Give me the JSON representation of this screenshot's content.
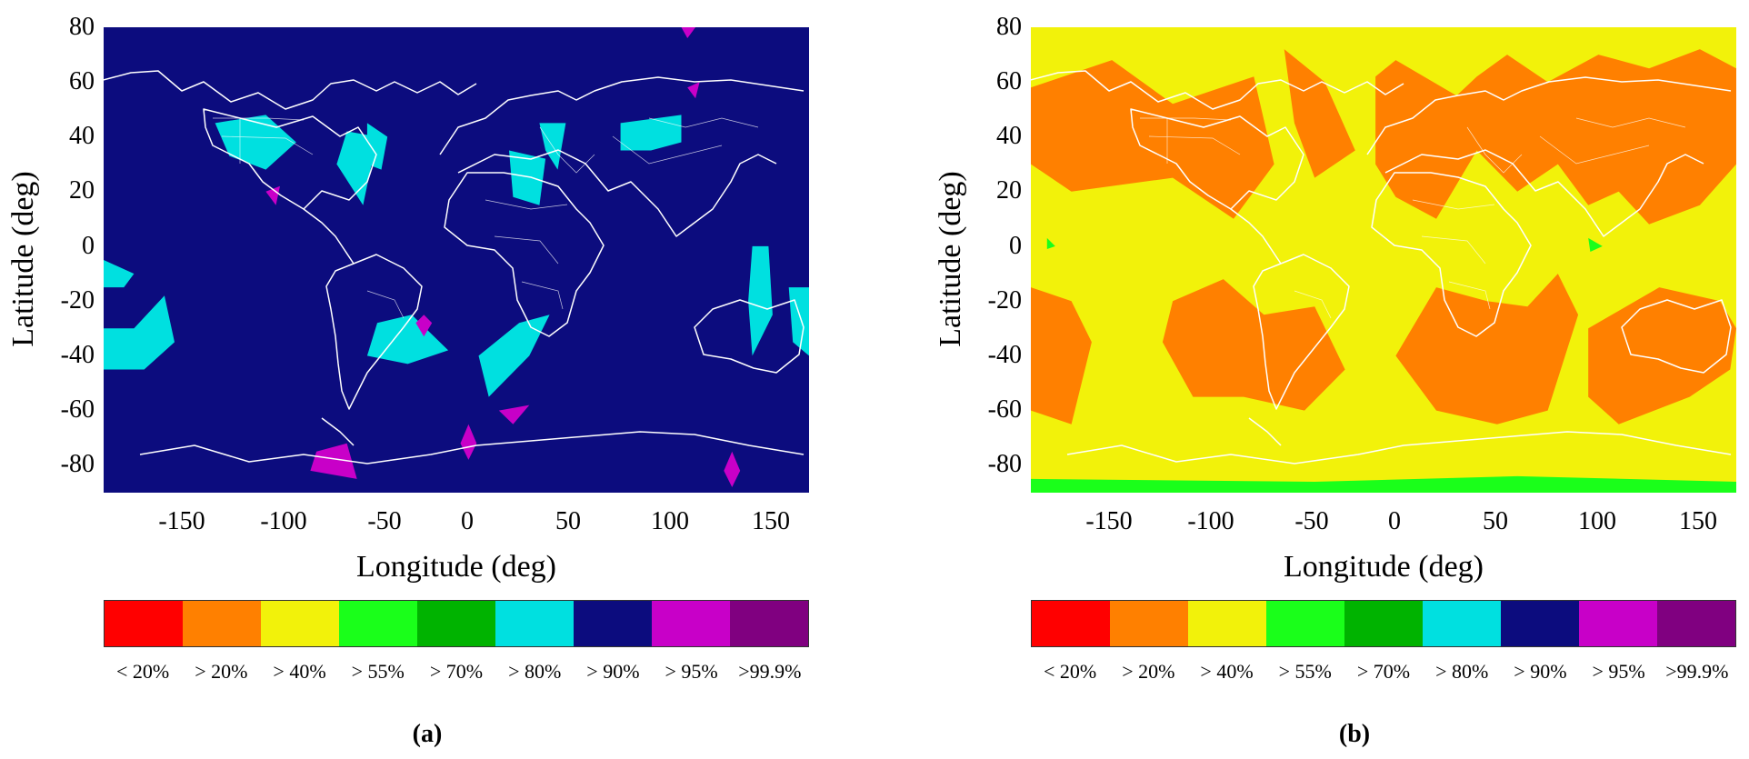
{
  "figure": {
    "panels": [
      {
        "caption": "(a)",
        "background": "#0c0c7e",
        "x_label": "Longitude (deg)",
        "y_label": "Latitude (deg)"
      },
      {
        "caption": "(b)",
        "background": "#f2f20a",
        "x_label": "Longitude (deg)",
        "y_label": "Latitude (deg)"
      }
    ],
    "x_ticks": [
      "-150",
      "-100",
      "-50",
      "0",
      "50",
      "100",
      "150"
    ],
    "y_ticks": [
      "80",
      "60",
      "40",
      "20",
      "0",
      "-20",
      "-40",
      "-60",
      "-80"
    ],
    "colorbar": {
      "colors": [
        "#ff0000",
        "#ff8000",
        "#f2f20a",
        "#1aff1a",
        "#00b300",
        "#00e0e0",
        "#0c0c7e",
        "#c800c8",
        "#800080"
      ],
      "labels": [
        "< 20%",
        "> 20%",
        "> 40%",
        "> 55%",
        "> 70%",
        "> 80%",
        "> 90%",
        "> 95%",
        ">99.9%"
      ]
    }
  },
  "chart_data": [
    {
      "type": "heatmap",
      "xlabel": "Longitude (deg)",
      "ylabel": "Latitude (deg)",
      "xlim": [
        -180,
        168
      ],
      "ylim": [
        -90,
        80
      ],
      "x_ticks": [
        -150,
        -100,
        -50,
        0,
        50,
        100,
        150
      ],
      "y_ticks": [
        80,
        60,
        40,
        20,
        0,
        -20,
        -40,
        -60,
        -80
      ],
      "dominant_class": "> 90%",
      "regions": [
        {
          "class": "> 80%",
          "polygon": [
            [
              -125,
              45
            ],
            [
              -100,
              48
            ],
            [
              -85,
              38
            ],
            [
              -100,
              28
            ],
            [
              -118,
              33
            ]
          ]
        },
        {
          "class": "> 80%",
          "polygon": [
            [
              -60,
              42
            ],
            [
              -45,
              40
            ],
            [
              -52,
              15
            ],
            [
              -65,
              30
            ]
          ]
        },
        {
          "class": "> 80%",
          "polygon": [
            [
              -50,
              45
            ],
            [
              -40,
              40
            ],
            [
              -43,
              28
            ],
            [
              -50,
              30
            ]
          ]
        },
        {
          "class": "> 80%",
          "polygon": [
            [
              -180,
              -5
            ],
            [
              -165,
              -10
            ],
            [
              -170,
              -15
            ],
            [
              -180,
              -15
            ]
          ]
        },
        {
          "class": "> 80%",
          "polygon": [
            [
              -180,
              -30
            ],
            [
              -165,
              -30
            ],
            [
              -150,
              -18
            ],
            [
              -145,
              -35
            ],
            [
              -160,
              -45
            ],
            [
              -180,
              -45
            ]
          ]
        },
        {
          "class": "> 80%",
          "polygon": [
            [
              -45,
              -28
            ],
            [
              -28,
              -25
            ],
            [
              -10,
              -38
            ],
            [
              -30,
              -43
            ],
            [
              -50,
              -40
            ]
          ]
        },
        {
          "class": "> 80%",
          "polygon": [
            [
              5,
              -40
            ],
            [
              25,
              -28
            ],
            [
              40,
              -25
            ],
            [
              30,
              -40
            ],
            [
              10,
              -55
            ]
          ]
        },
        {
          "class": "> 80%",
          "polygon": [
            [
              75,
              45
            ],
            [
              105,
              48
            ],
            [
              105,
              38
            ],
            [
              90,
              35
            ],
            [
              75,
              35
            ]
          ]
        },
        {
          "class": "> 80%",
          "polygon": [
            [
              140,
              0
            ],
            [
              148,
              0
            ],
            [
              150,
              -25
            ],
            [
              140,
              -40
            ],
            [
              138,
              -20
            ]
          ]
        },
        {
          "class": "> 80%",
          "polygon": [
            [
              158,
              -15
            ],
            [
              168,
              -15
            ],
            [
              168,
              -40
            ],
            [
              160,
              -35
            ]
          ]
        },
        {
          "class": "> 80%",
          "polygon": [
            [
              20,
              35
            ],
            [
              38,
              32
            ],
            [
              35,
              15
            ],
            [
              22,
              18
            ]
          ]
        },
        {
          "class": "> 80%",
          "polygon": [
            [
              35,
              45
            ],
            [
              48,
              45
            ],
            [
              44,
              28
            ],
            [
              38,
              35
            ]
          ]
        },
        {
          "class": "> 95%",
          "polygon": [
            [
              -100,
              20
            ],
            [
              -93,
              22
            ],
            [
              -95,
              15
            ]
          ]
        },
        {
          "class": "> 95%",
          "polygon": [
            [
              -75,
              -75
            ],
            [
              -60,
              -72
            ],
            [
              -55,
              -85
            ],
            [
              -78,
              -82
            ]
          ]
        },
        {
          "class": "> 95%",
          "polygon": [
            [
              15,
              -60
            ],
            [
              30,
              -58
            ],
            [
              22,
              -65
            ]
          ]
        },
        {
          "class": "> 95%",
          "polygon": [
            [
              0,
              -65
            ],
            [
              4,
              -72
            ],
            [
              0,
              -78
            ],
            [
              -4,
              -72
            ]
          ]
        },
        {
          "class": "> 95%",
          "polygon": [
            [
              130,
              -75
            ],
            [
              134,
              -82
            ],
            [
              130,
              -88
            ],
            [
              126,
              -82
            ]
          ]
        },
        {
          "class": "> 95%",
          "polygon": [
            [
              -22,
              -25
            ],
            [
              -18,
              -28
            ],
            [
              -22,
              -33
            ],
            [
              -26,
              -28
            ]
          ]
        },
        {
          "class": "> 95%",
          "polygon": [
            [
              105,
              80
            ],
            [
              112,
              80
            ],
            [
              108,
              76
            ]
          ]
        },
        {
          "class": "> 95%",
          "polygon": [
            [
              108,
              58
            ],
            [
              114,
              60
            ],
            [
              112,
              54
            ]
          ]
        }
      ]
    },
    {
      "type": "heatmap",
      "xlabel": "Longitude (deg)",
      "ylabel": "Latitude (deg)",
      "xlim": [
        -180,
        168
      ],
      "ylim": [
        -90,
        80
      ],
      "x_ticks": [
        -150,
        -100,
        -50,
        0,
        50,
        100,
        150
      ],
      "y_ticks": [
        80,
        60,
        40,
        20,
        0,
        -20,
        -40,
        -60,
        -80
      ],
      "dominant_class": "> 40%",
      "regions": [
        {
          "class": "> 20%",
          "polygon": [
            [
              -180,
              58
            ],
            [
              -140,
              68
            ],
            [
              -110,
              52
            ],
            [
              -70,
              62
            ],
            [
              -60,
              30
            ],
            [
              -80,
              10
            ],
            [
              -110,
              25
            ],
            [
              -160,
              20
            ],
            [
              -180,
              30
            ]
          ]
        },
        {
          "class": "> 20%",
          "polygon": [
            [
              -55,
              72
            ],
            [
              -35,
              60
            ],
            [
              -20,
              35
            ],
            [
              -40,
              25
            ],
            [
              -50,
              45
            ]
          ]
        },
        {
          "class": "> 20%",
          "polygon": [
            [
              -10,
              62
            ],
            [
              0,
              68
            ],
            [
              30,
              55
            ],
            [
              40,
              62
            ],
            [
              55,
              70
            ],
            [
              75,
              60
            ],
            [
              100,
              70
            ],
            [
              125,
              65
            ],
            [
              150,
              72
            ],
            [
              168,
              65
            ],
            [
              168,
              30
            ],
            [
              150,
              15
            ],
            [
              125,
              8
            ],
            [
              110,
              20
            ],
            [
              95,
              15
            ],
            [
              80,
              30
            ],
            [
              60,
              20
            ],
            [
              40,
              35
            ],
            [
              20,
              10
            ],
            [
              0,
              18
            ],
            [
              -10,
              30
            ]
          ]
        },
        {
          "class": "> 20%",
          "polygon": [
            [
              -180,
              -15
            ],
            [
              -160,
              -20
            ],
            [
              -150,
              -35
            ],
            [
              -160,
              -65
            ],
            [
              -180,
              -60
            ]
          ]
        },
        {
          "class": "> 20%",
          "polygon": [
            [
              -110,
              -20
            ],
            [
              -85,
              -12
            ],
            [
              -65,
              -25
            ],
            [
              -40,
              -22
            ],
            [
              -25,
              -45
            ],
            [
              -45,
              -60
            ],
            [
              -75,
              -55
            ],
            [
              -100,
              -55
            ],
            [
              -115,
              -35
            ]
          ]
        },
        {
          "class": "> 20%",
          "polygon": [
            [
              0,
              -40
            ],
            [
              20,
              -15
            ],
            [
              45,
              -20
            ],
            [
              65,
              -22
            ],
            [
              80,
              -10
            ],
            [
              90,
              -25
            ],
            [
              75,
              -60
            ],
            [
              50,
              -65
            ],
            [
              20,
              -60
            ]
          ]
        },
        {
          "class": "> 20%",
          "polygon": [
            [
              95,
              -30
            ],
            [
              130,
              -15
            ],
            [
              160,
              -20
            ],
            [
              168,
              -30
            ],
            [
              165,
              -45
            ],
            [
              145,
              -55
            ],
            [
              110,
              -65
            ],
            [
              95,
              -55
            ]
          ]
        },
        {
          "class": "> 55%",
          "polygon": [
            [
              -180,
              -85
            ],
            [
              -40,
              -86
            ],
            [
              60,
              -84
            ],
            [
              168,
              -86
            ],
            [
              168,
              -90
            ],
            [
              -180,
              -90
            ]
          ]
        },
        {
          "class": "> 55%",
          "polygon": [
            [
              -172,
              3
            ],
            [
              -168,
              0
            ],
            [
              -172,
              -1
            ]
          ]
        },
        {
          "class": "> 55%",
          "polygon": [
            [
              95,
              3
            ],
            [
              102,
              0
            ],
            [
              96,
              -2
            ]
          ]
        }
      ]
    }
  ]
}
